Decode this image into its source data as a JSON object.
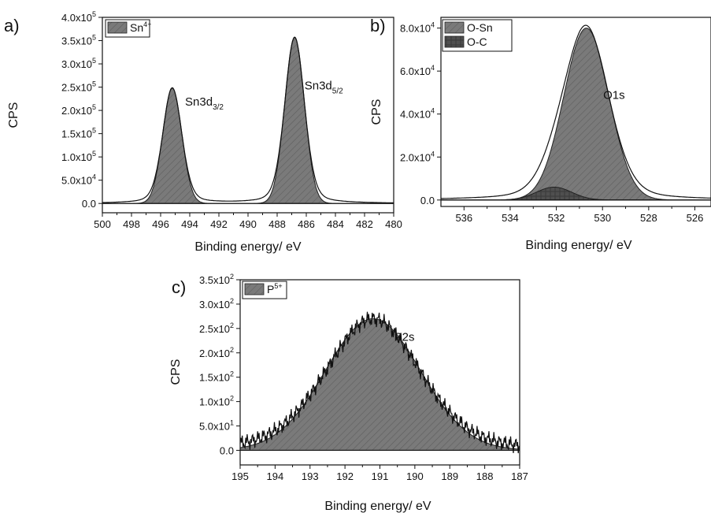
{
  "chart_data": [
    {
      "panel": "a)",
      "type": "area",
      "xlabel": "Binding energy/ eV",
      "ylabel": "CPS",
      "xlim": [
        500,
        480
      ],
      "ylim": [
        -20000,
        400000
      ],
      "xticks": [
        "500",
        "498",
        "496",
        "494",
        "492",
        "490",
        "488",
        "486",
        "484",
        "482",
        "480"
      ],
      "yticks": [
        {
          "v": 0,
          "mant": "0.0",
          "exp": ""
        },
        {
          "v": 50000,
          "mant": "5.0x10",
          "exp": "4"
        },
        {
          "v": 100000,
          "mant": "1.0x10",
          "exp": "5"
        },
        {
          "v": 150000,
          "mant": "1.5x10",
          "exp": "5"
        },
        {
          "v": 200000,
          "mant": "2.0x10",
          "exp": "5"
        },
        {
          "v": 250000,
          "mant": "2.5x10",
          "exp": "5"
        },
        {
          "v": 300000,
          "mant": "3.0x10",
          "exp": "5"
        },
        {
          "v": 350000,
          "mant": "3.5x10",
          "exp": "5"
        },
        {
          "v": 400000,
          "mant": "4.0x10",
          "exp": "5"
        }
      ],
      "legend": [
        {
          "base": "Sn",
          "sup": "4+",
          "color": "#777777"
        }
      ],
      "series": [
        {
          "name": "Sn4+",
          "peaks": [
            {
              "center": 495.2,
              "height": 248000,
              "fwhm": 1.55
            },
            {
              "center": 486.8,
              "height": 357000,
              "fwhm": 1.6
            }
          ]
        }
      ],
      "annotations": [
        {
          "base": "Sn3d",
          "sub": "3/2",
          "x": 493.0,
          "y": 210000
        },
        {
          "base": "Sn3d",
          "sub": "5/2",
          "x": 484.8,
          "y": 245000
        }
      ]
    },
    {
      "panel": "b)",
      "type": "area",
      "xlabel": "Binding energy/ eV",
      "ylabel": "CPS",
      "xlim": [
        537,
        525.3
      ],
      "ylim": [
        -3000,
        85000
      ],
      "xticks": [
        "536",
        "534",
        "532",
        "530",
        "528",
        "526"
      ],
      "yticks": [
        {
          "v": 0,
          "mant": "0.0",
          "exp": ""
        },
        {
          "v": 20000,
          "mant": "2.0x10",
          "exp": "4"
        },
        {
          "v": 40000,
          "mant": "4.0x10",
          "exp": "4"
        },
        {
          "v": 60000,
          "mant": "6.0x10",
          "exp": "4"
        },
        {
          "v": 80000,
          "mant": "8.0x10",
          "exp": "4"
        }
      ],
      "legend": [
        {
          "base": "O-Sn",
          "sup": "",
          "color": "#777777"
        },
        {
          "base": "O-C",
          "sup": "",
          "color": "#555555"
        }
      ],
      "series": [
        {
          "name": "O-Sn",
          "peaks": [
            {
              "center": 530.7,
              "height": 80000,
              "fwhm": 2.3
            }
          ]
        },
        {
          "name": "O-C",
          "peaks": [
            {
              "center": 532.1,
              "height": 6000,
              "fwhm": 1.8
            }
          ]
        }
      ],
      "annotations": [
        {
          "base": "O1s",
          "sub": "",
          "x": 529.5,
          "y": 47000
        }
      ]
    },
    {
      "panel": "c)",
      "type": "area",
      "xlabel": "Binding energy/ eV",
      "ylabel": "CPS",
      "xlim": [
        195,
        187
      ],
      "ylim": [
        -30,
        350
      ],
      "xticks": [
        "195",
        "194",
        "193",
        "192",
        "191",
        "190",
        "189",
        "188",
        "187"
      ],
      "yticks": [
        {
          "v": 0,
          "mant": "0.0",
          "exp": ""
        },
        {
          "v": 50,
          "mant": "5.0x10",
          "exp": "1"
        },
        {
          "v": 100,
          "mant": "1.0x10",
          "exp": "2"
        },
        {
          "v": 150,
          "mant": "1.5x10",
          "exp": "2"
        },
        {
          "v": 200,
          "mant": "2.0x10",
          "exp": "2"
        },
        {
          "v": 250,
          "mant": "2.5x10",
          "exp": "2"
        },
        {
          "v": 300,
          "mant": "3.0x10",
          "exp": "2"
        },
        {
          "v": 350,
          "mant": "3.5x10",
          "exp": "2"
        }
      ],
      "legend": [
        {
          "base": "P",
          "sup": "5+",
          "color": "#777777"
        }
      ],
      "series": [
        {
          "name": "P5+",
          "peaks": [
            {
              "center": 191.2,
              "height": 270,
              "fwhm": 3.2
            }
          ]
        }
      ],
      "annotations": [
        {
          "base": "P2s",
          "sub": "",
          "x": 190.3,
          "y": 225
        }
      ]
    }
  ]
}
